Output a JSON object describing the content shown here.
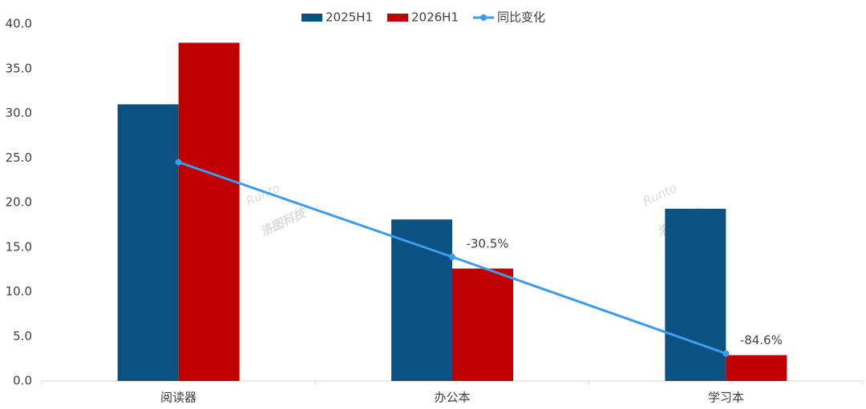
{
  "chart_data": {
    "type": "bar-line",
    "categories": [
      "阅读器",
      "办公本",
      "学习本"
    ],
    "series": [
      {
        "name": "2025H1",
        "color": "#0b5283",
        "type": "bar",
        "values": [
          31.0,
          18.1,
          19.3
        ]
      },
      {
        "name": "2026H1",
        "color": "#c00000",
        "type": "bar",
        "values": [
          37.9,
          12.6,
          2.9
        ]
      },
      {
        "name": "同比变化",
        "color": "#3b9ced",
        "type": "line",
        "axis": "y2",
        "values": [
          22.6,
          -30.5,
          -84.6
        ],
        "value_labels": [
          null,
          "-30.5%",
          "-84.6%"
        ]
      }
    ],
    "ylim": [
      0,
      40
    ],
    "yticks": [
      {
        "value": 0,
        "label": "0.0"
      },
      {
        "value": 5,
        "label": "5.0"
      },
      {
        "value": 10,
        "label": "10.0"
      },
      {
        "value": 15,
        "label": "15.0"
      },
      {
        "value": 20,
        "label": "20.0"
      },
      {
        "value": 25,
        "label": "25.0"
      },
      {
        "value": 30,
        "label": "30.0"
      },
      {
        "value": 35,
        "label": "35.0"
      },
      {
        "value": 40,
        "label": "40.0"
      }
    ],
    "y2lim": [
      -100,
      100
    ],
    "legend": "top",
    "watermark": [
      "Runto",
      "洛图科技"
    ]
  }
}
